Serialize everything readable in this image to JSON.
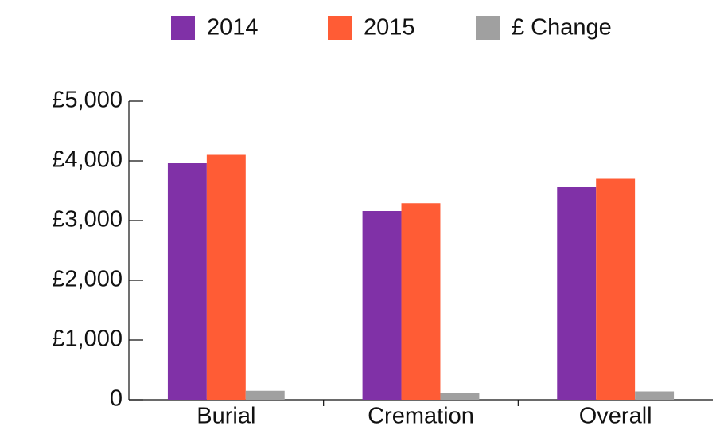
{
  "chart_data": {
    "type": "bar",
    "categories": [
      "Burial",
      "Cremation",
      "Overall"
    ],
    "series": [
      {
        "name": "2014",
        "color": "#8031a7",
        "values": [
          3960,
          3160,
          3560
        ]
      },
      {
        "name": "2015",
        "color": "#ff5c35",
        "values": [
          4100,
          3290,
          3700
        ]
      },
      {
        "name": "£ Change",
        "color": "#a0a0a0",
        "values": [
          150,
          120,
          140
        ]
      }
    ],
    "ylim": [
      0,
      5000
    ],
    "yticks": [
      0,
      {
        "value": 1000,
        "label": "£1,000"
      },
      {
        "value": 2000,
        "label": "£2,000"
      },
      {
        "value": 3000,
        "label": "£3,000"
      },
      {
        "value": 4000,
        "label": "£4,000"
      },
      {
        "value": 5000,
        "label": "£5,000"
      }
    ],
    "legend": "top"
  }
}
